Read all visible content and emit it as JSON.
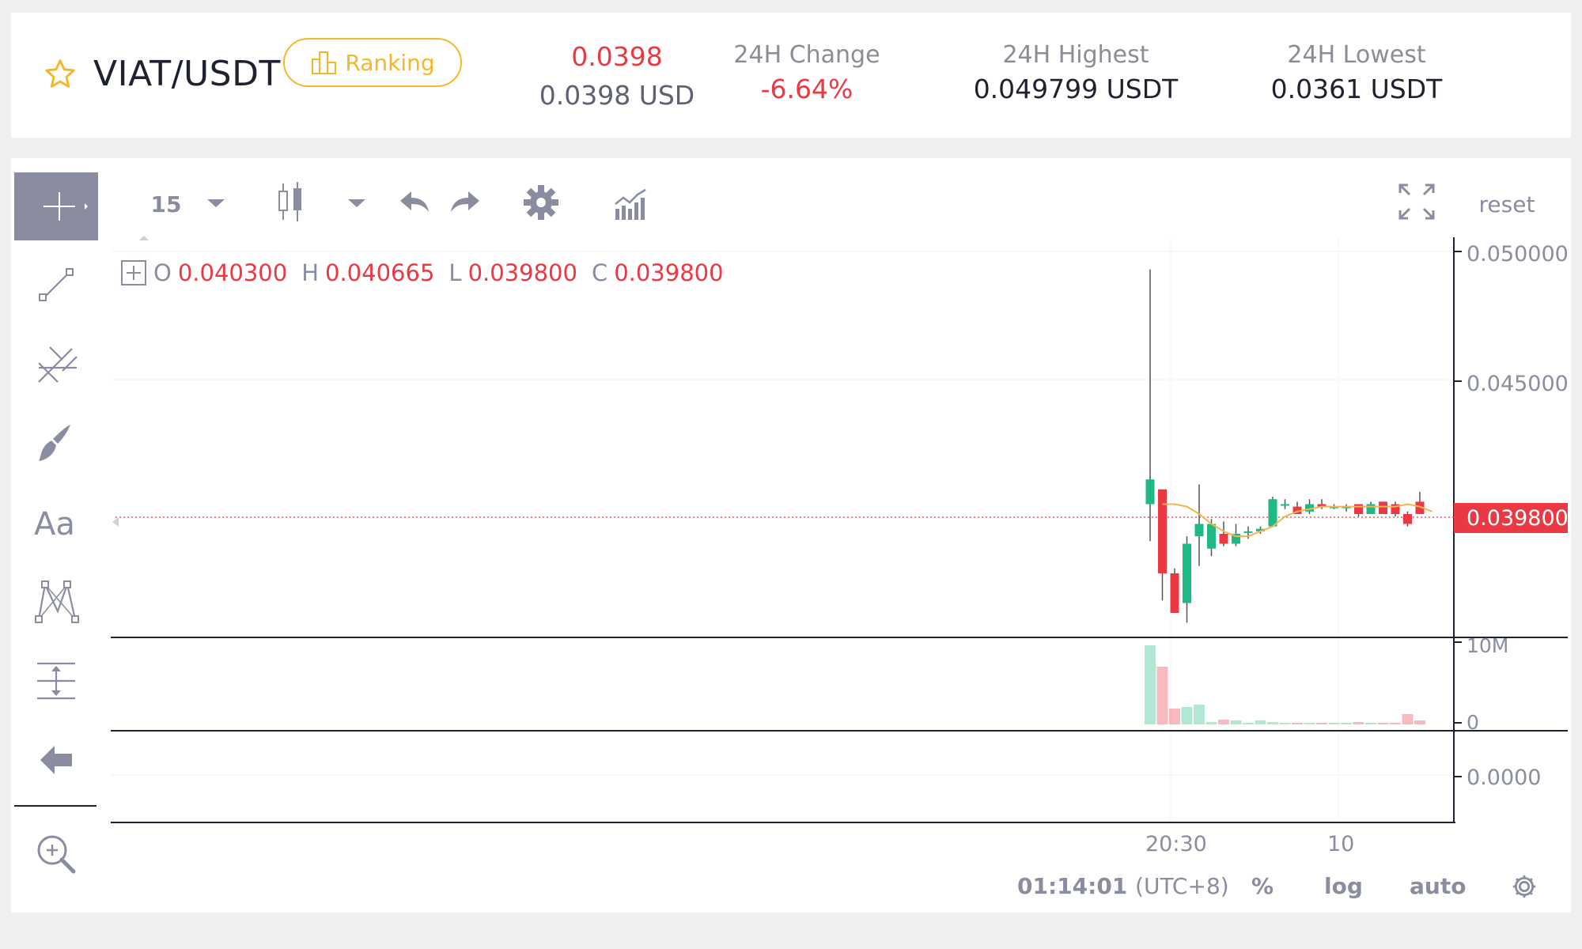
{
  "header": {
    "pair": "VIAT/USDT",
    "ranking_label": "Ranking",
    "last_price": "0.0398",
    "last_price_usd": "0.0398 USD",
    "change_label": "24H Change",
    "change_value": "-6.64%",
    "high_label": "24H Highest",
    "high_value": "0.049799 USDT",
    "low_label": "24H Lowest",
    "low_value": "0.0361 USDT"
  },
  "toolbar": {
    "interval": "15",
    "reset_label": "reset"
  },
  "ohlc": {
    "o_label": "O",
    "o_value": "0.040300",
    "h_label": "H",
    "h_value": "0.040665",
    "l_label": "L",
    "l_value": "0.039800",
    "c_label": "C",
    "c_value": "0.039800"
  },
  "chart_data": {
    "type": "candlestick",
    "price_axis_ticks": [
      "0.050000",
      "0.045000"
    ],
    "current_price_label": "0.039800",
    "volume_axis_ticks": [
      "10M",
      "0"
    ],
    "indicator_axis_ticks": [
      "0.0000"
    ],
    "time_ticks": [
      "20:30",
      "10"
    ],
    "candles": [
      {
        "o": 0.0402,
        "h": 0.0497,
        "l": 0.0387,
        "c": 0.0412
      },
      {
        "o": 0.0408,
        "h": 0.0408,
        "l": 0.0363,
        "c": 0.0374
      },
      {
        "o": 0.0374,
        "h": 0.0376,
        "l": 0.0358,
        "c": 0.0358
      },
      {
        "o": 0.0362,
        "h": 0.0389,
        "l": 0.0354,
        "c": 0.0386
      },
      {
        "o": 0.0389,
        "h": 0.041,
        "l": 0.0377,
        "c": 0.0394
      },
      {
        "o": 0.0384,
        "h": 0.0396,
        "l": 0.0381,
        "c": 0.0394
      },
      {
        "o": 0.039,
        "h": 0.0395,
        "l": 0.0385,
        "c": 0.0386
      },
      {
        "o": 0.0386,
        "h": 0.0394,
        "l": 0.0385,
        "c": 0.039
      },
      {
        "o": 0.0391,
        "h": 0.0393,
        "l": 0.0388,
        "c": 0.0391
      },
      {
        "o": 0.0391,
        "h": 0.0393,
        "l": 0.039,
        "c": 0.0392
      },
      {
        "o": 0.0393,
        "h": 0.0405,
        "l": 0.0393,
        "c": 0.0404
      },
      {
        "o": 0.0402,
        "h": 0.0404,
        "l": 0.04,
        "c": 0.0402
      },
      {
        "o": 0.0401,
        "h": 0.0403,
        "l": 0.0398,
        "c": 0.0398
      },
      {
        "o": 0.0399,
        "h": 0.0404,
        "l": 0.0398,
        "c": 0.0402
      },
      {
        "o": 0.0402,
        "h": 0.0404,
        "l": 0.04,
        "c": 0.0401
      },
      {
        "o": 0.0401,
        "h": 0.0402,
        "l": 0.04,
        "c": 0.0401
      },
      {
        "o": 0.0401,
        "h": 0.0402,
        "l": 0.0399,
        "c": 0.0401
      },
      {
        "o": 0.0402,
        "h": 0.0402,
        "l": 0.0397,
        "c": 0.0398
      },
      {
        "o": 0.0398,
        "h": 0.0403,
        "l": 0.0398,
        "c": 0.0402
      },
      {
        "o": 0.0403,
        "h": 0.0403,
        "l": 0.0398,
        "c": 0.0398
      },
      {
        "o": 0.0402,
        "h": 0.0403,
        "l": 0.0397,
        "c": 0.0398
      },
      {
        "o": 0.0398,
        "h": 0.0399,
        "l": 0.0393,
        "c": 0.0394
      },
      {
        "o": 0.0403,
        "h": 0.0407,
        "l": 0.0398,
        "c": 0.0398
      }
    ],
    "ma": [
      0.0402,
      0.0402,
      0.0401,
      0.0398,
      0.0394,
      0.0391,
      0.0389,
      0.0389,
      0.0391,
      0.0393,
      0.0397,
      0.0399,
      0.04,
      0.0401,
      0.0401,
      0.0401,
      0.0401,
      0.0401,
      0.0401,
      0.0401,
      0.0402,
      0.0401,
      0.0399
    ],
    "volume_fraction": [
      1.0,
      0.73,
      0.2,
      0.22,
      0.25,
      0.03,
      0.06,
      0.05,
      0.02,
      0.05,
      0.03,
      0.02,
      0.02,
      0.02,
      0.01,
      0.02,
      0.02,
      0.03,
      0.02,
      0.02,
      0.01,
      0.13,
      0.05
    ],
    "ylim": [
      0.035,
      0.051
    ]
  },
  "footer": {
    "time": "01:14:01",
    "tz": "(UTC+8)",
    "percent": "%",
    "log": "log",
    "auto": "auto"
  },
  "colors": {
    "up": "#1fb984",
    "down": "#ea3943",
    "accent": "#f5b72a",
    "ma": "#f3b451"
  }
}
